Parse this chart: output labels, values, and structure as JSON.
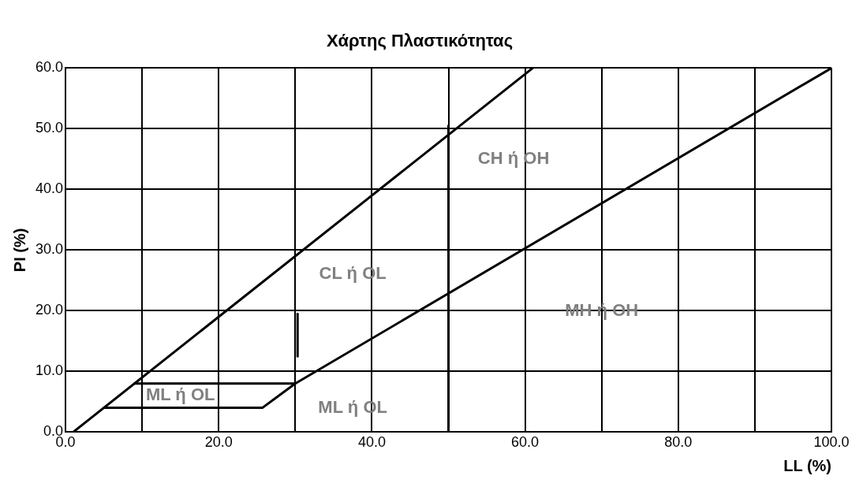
{
  "chart_data": {
    "type": "line",
    "title": "Χάρτης Πλαστικότητας",
    "xlabel": "LL (%)",
    "ylabel": "PI (%)",
    "series": [
      {
        "color": "#000000",
        "x": [
          1,
          61
        ],
        "values": [
          0,
          60
        ]
      },
      {
        "color": "#000000",
        "x": [
          5,
          25.7,
          30,
          100
        ],
        "values": [
          4,
          4,
          8,
          60
        ]
      },
      {
        "color": "#000000",
        "x": [
          9,
          30
        ],
        "values": [
          8,
          8
        ]
      },
      {
        "color": "#000000",
        "x": [
          50,
          50
        ],
        "values": [
          0,
          50.5
        ]
      },
      {
        "color": "#000000",
        "x": [
          30.3,
          30.3
        ],
        "values": [
          12.5,
          19.5
        ]
      }
    ],
    "xlim": [
      0,
      100
    ],
    "ylim": [
      0,
      60
    ],
    "xticks": [
      {
        "value": 0,
        "label": "0.0"
      },
      {
        "value": 10,
        "label": null
      },
      {
        "value": 20,
        "label": "20.0"
      },
      {
        "value": 30,
        "label": null
      },
      {
        "value": 40,
        "label": "40.0"
      },
      {
        "value": 50,
        "label": null
      },
      {
        "value": 60,
        "label": "60.0"
      },
      {
        "value": 70,
        "label": null
      },
      {
        "value": 80,
        "label": "80.0"
      },
      {
        "value": 90,
        "label": null
      },
      {
        "value": 100,
        "label": "100.0"
      }
    ],
    "yticks": [
      {
        "value": 0,
        "label": "0.0"
      },
      {
        "value": 10,
        "label": "10.0"
      },
      {
        "value": 20,
        "label": "20.0"
      },
      {
        "value": 30,
        "label": "30.0"
      },
      {
        "value": 40,
        "label": "40.0"
      },
      {
        "value": 50,
        "label": "50.0"
      },
      {
        "value": 60,
        "label": "60.0"
      }
    ],
    "grid": true,
    "legend": false,
    "marker": "none",
    "line_style": "solid",
    "annotations": [
      "CH ή OH",
      "CL ή OL",
      "MH ή OH",
      "ML ή OL",
      "ML ή OL"
    ]
  }
}
